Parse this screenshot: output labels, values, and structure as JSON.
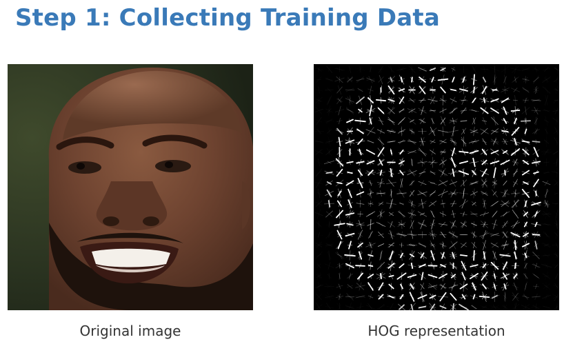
{
  "slide": {
    "title": "Step 1: Collecting Training Data"
  },
  "images": {
    "original": {
      "caption": "Original image",
      "icon": "face-photo"
    },
    "hog": {
      "caption": "HOG representation",
      "icon": "hog-visualization"
    }
  },
  "colors": {
    "title": "#3a7ab8",
    "caption": "#333333",
    "hog_background": "#000000",
    "hog_stroke": "#ffffff"
  }
}
